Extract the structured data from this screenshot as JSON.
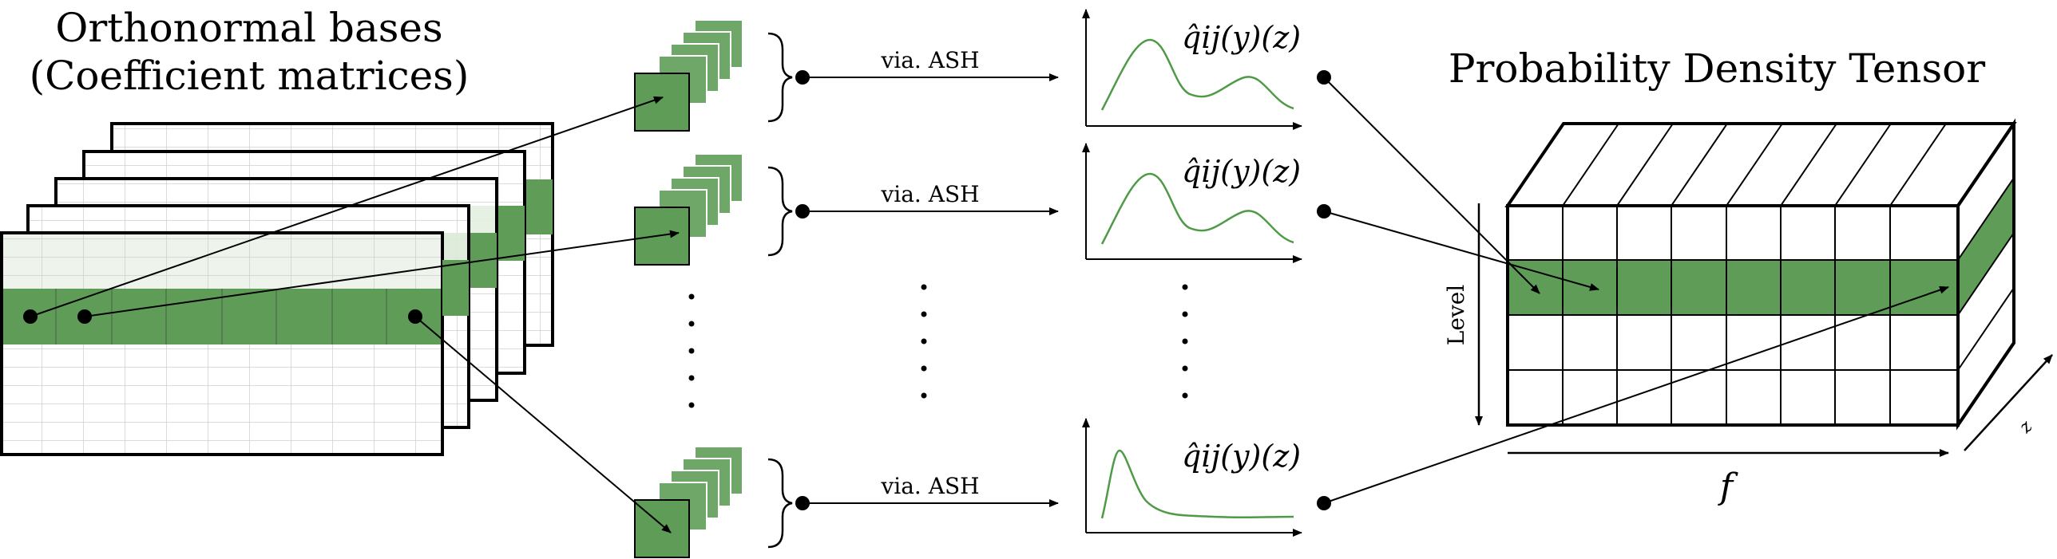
{
  "labels": {
    "bases_title_line1": "Orthonormal bases",
    "bases_title_line2": "(Coefficient matrices)",
    "tensor_title": "Probability Density Tensor",
    "via_ash": "via. ASH",
    "density_func": "q̂ij(y)(z)",
    "axis_level": "Level",
    "axis_f": "f",
    "axis_z": "z"
  },
  "colors": {
    "green": "#5f9c58",
    "green_light": "#d7e6d3",
    "green_dark": "#3f7a3a",
    "grid_gray": "#c8c8c8",
    "curve": "#4f9a47"
  },
  "icons": {
    "arrow": "arrow-icon",
    "dot": "dot-icon"
  }
}
